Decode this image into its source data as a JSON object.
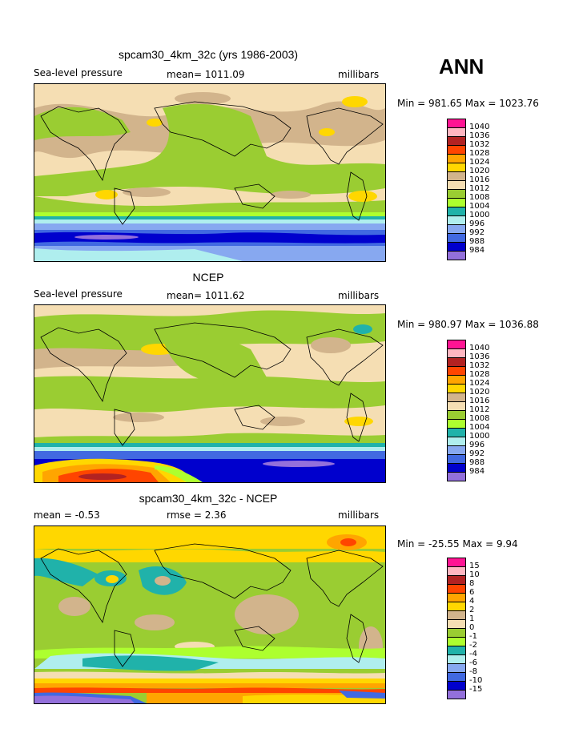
{
  "season": "ANN",
  "chart_data": [
    {
      "type": "heatmap",
      "title": "spcam30_4km_32c (yrs 1986-2003)",
      "left_label": "Sea-level pressure",
      "center_label": "mean= 1011.09",
      "right_label": "millibars",
      "stats": "Min = 981.65 Max = 1023.76",
      "legend": {
        "levels": [
          "1040",
          "1036",
          "1032",
          "1028",
          "1024",
          "1020",
          "1016",
          "1012",
          "1008",
          "1004",
          "1000",
          "996",
          "992",
          "988",
          "984"
        ],
        "colors": [
          "#ff1493",
          "#ffb6c1",
          "#b22222",
          "#ff4500",
          "#ffa500",
          "#ffd700",
          "#d2b48c",
          "#f5deb3",
          "#9acd32",
          "#adff2f",
          "#20b2aa",
          "#afeeee",
          "#87a8f0",
          "#4169e1",
          "#0000cd",
          "#9370db"
        ]
      }
    },
    {
      "type": "heatmap",
      "title": "NCEP",
      "left_label": "Sea-level pressure",
      "center_label": "mean= 1011.62",
      "right_label": "millibars",
      "stats": "Min = 980.97 Max = 1036.88",
      "legend": {
        "levels": [
          "1040",
          "1036",
          "1032",
          "1028",
          "1024",
          "1020",
          "1016",
          "1012",
          "1008",
          "1004",
          "1000",
          "996",
          "992",
          "988",
          "984"
        ],
        "colors": [
          "#ff1493",
          "#ffb6c1",
          "#b22222",
          "#ff4500",
          "#ffa500",
          "#ffd700",
          "#d2b48c",
          "#f5deb3",
          "#9acd32",
          "#adff2f",
          "#20b2aa",
          "#afeeee",
          "#87a8f0",
          "#4169e1",
          "#0000cd",
          "#9370db"
        ]
      }
    },
    {
      "type": "heatmap",
      "title": "spcam30_4km_32c - NCEP",
      "left_label": "mean =   -0.53",
      "center_label": "rmse =    2.36",
      "right_label": "millibars",
      "stats": "Min = -25.55 Max =    9.94",
      "legend": {
        "levels": [
          "15",
          "10",
          "8",
          "6",
          "4",
          "2",
          "1",
          "0",
          "-1",
          "-2",
          "-4",
          "-6",
          "-8",
          "-10",
          "-15"
        ],
        "colors": [
          "#ff1493",
          "#ffb6c1",
          "#b22222",
          "#ff4500",
          "#ffa500",
          "#ffd700",
          "#d2b48c",
          "#f5deb3",
          "#9acd32",
          "#adff2f",
          "#20b2aa",
          "#afeeee",
          "#87a8f0",
          "#4169e1",
          "#0000cd",
          "#9370db"
        ]
      }
    }
  ]
}
